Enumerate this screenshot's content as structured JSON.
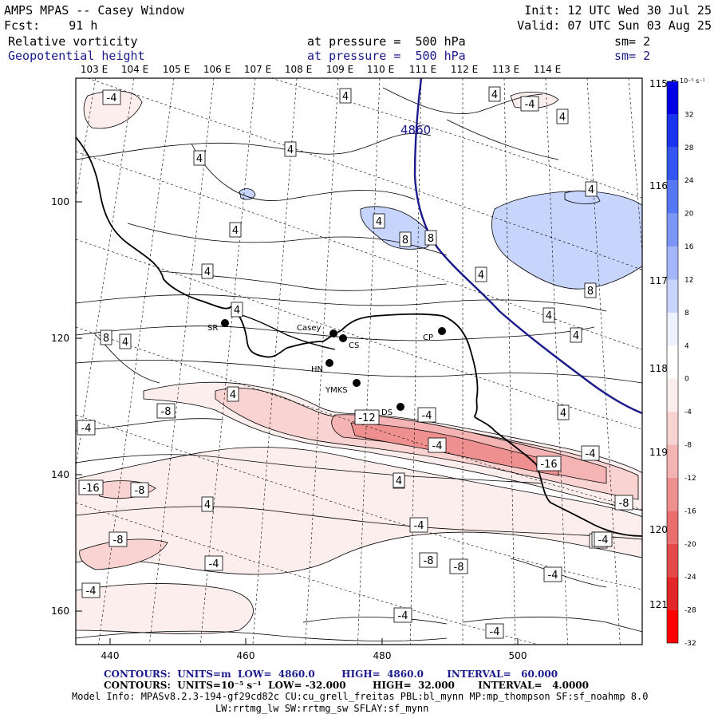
{
  "header": {
    "line1_left": "AMPS MPAS -- Casey Window",
    "line1_right": "Init: 12 UTC Wed 30 Jul 25",
    "line2_left": "Fcst:    91 h",
    "line2_right": "Valid: 07 UTC Sun 03 Aug 25",
    "field1_name": "Relative vorticity",
    "field1_level": "at pressure =  500 hPa",
    "field1_sm": "sm= 2",
    "field2_name": "Geopotential height",
    "field2_level": "at pressure =  500 hPa",
    "field2_sm": "sm= 2"
  },
  "top_lon_labels": [
    "103 E",
    "104 E",
    "105 E",
    "106 E",
    "107 E",
    "108 E",
    "109 E",
    "110 E",
    "111 E",
    "112 E",
    "113 E",
    "114 E"
  ],
  "right_lon_labels": [
    "115 E",
    "116 E",
    "117 E",
    "118 E",
    "119 E",
    "120 E",
    "121 E"
  ],
  "left_y_labels": [
    "100",
    "120",
    "140",
    "160"
  ],
  "bottom_x_labels": [
    "440",
    "460",
    "480",
    "500"
  ],
  "stations": [
    "SR",
    "Casey",
    "CS",
    "CP",
    "HN",
    "YMKS",
    "DS"
  ],
  "contour_labels": [
    "-4",
    "4",
    "4",
    "-4",
    "4",
    "4",
    "4",
    "4",
    "4",
    "8",
    "8",
    "8",
    "4",
    "4",
    "4",
    "4",
    "4",
    "4",
    "8",
    "4",
    "-4",
    "4",
    "4",
    "-8",
    "-4",
    "-12",
    "-4",
    "4",
    "-16",
    "-4",
    "-8",
    "-16",
    "-8",
    "4",
    "-4",
    "-8",
    "-4",
    "-8",
    "-8",
    "-4",
    "-4",
    "-4",
    "-4",
    "-4",
    "-4",
    "-4",
    "-4",
    "4"
  ],
  "height_label": "4860",
  "colorbar": {
    "unit": "10⁻⁵ s⁻¹",
    "tick_labels": [
      "32",
      "28",
      "24",
      "20",
      "16",
      "12",
      "8",
      "4",
      "0",
      "-4",
      "-8",
      "-12",
      "-16",
      "-20",
      "-24",
      "-28",
      "-32"
    ],
    "colors": [
      "#0000e6",
      "#1a33ee",
      "#3355f2",
      "#5577f5",
      "#7b96f7",
      "#a3b6fa",
      "#c7d4fc",
      "#eef1ff",
      "#ffffff",
      "#fdeeee",
      "#f9d2d2",
      "#f4b4b4",
      "#ef9090",
      "#ea6e6e",
      "#e54a4a",
      "#e02626",
      "#ff0000"
    ]
  },
  "footer": {
    "contours1": "CONTOURS:  UNITS=m  LOW=  4860.0        HIGH=  4860.0       INTERVAL=   60.000",
    "contours2": "CONTOURS:  UNITS=10⁻⁵ s⁻¹  LOW= -32.000        HIGH=  32.000       INTERVAL=   4.0000",
    "model_info": "Model Info: MPASv8.2.3-194-gf29cd82c CU:cu_grell_freitas PBL:bl_mynn MP:mp_thompson SF:sf_noahmp 8.0",
    "model_info2": "LW:rrtmg_lw SW:rrtmg_sw SFLAY:sf_mynn"
  }
}
